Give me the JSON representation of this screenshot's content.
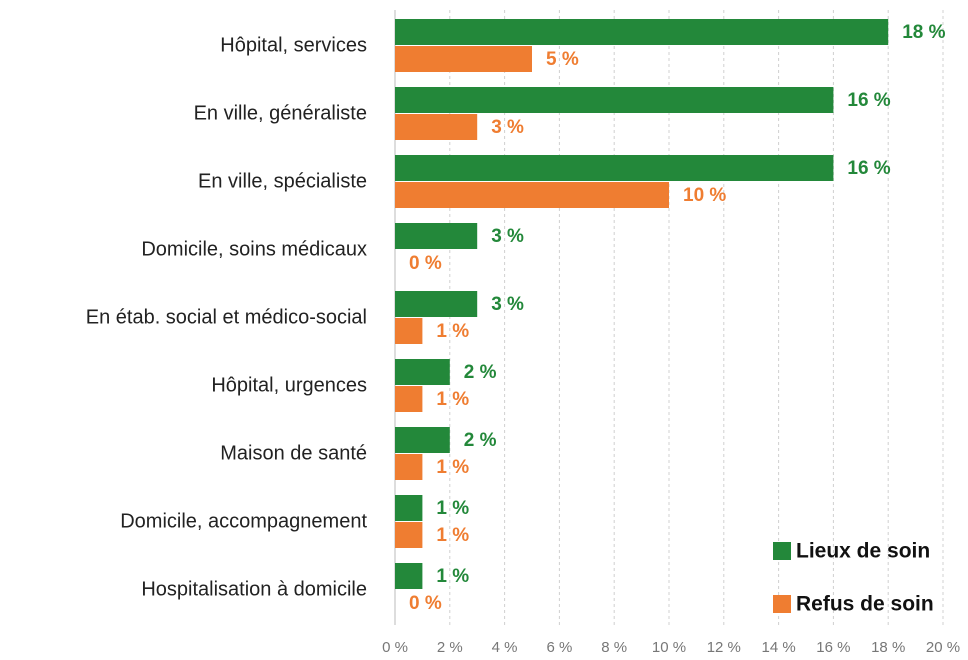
{
  "chart_data": {
    "type": "hbar",
    "categories": [
      "Hôpital, services",
      "En ville, généraliste",
      "En ville, spécialiste",
      "Domicile, soins médicaux",
      "En étab. social et médico-social",
      "Hôpital, urgences",
      "Maison de santé",
      "Domicile, accompagnement",
      "Hospitalisation à domicile"
    ],
    "series": [
      {
        "name": "Lieux de soin",
        "color": "#23883a",
        "values": [
          18,
          16,
          16,
          3,
          3,
          2,
          2,
          1,
          1
        ],
        "value_labels": [
          "18 %",
          "16 %",
          "16 %",
          "3 %",
          "3 %",
          "2 %",
          "2 %",
          "1 %",
          "1 %"
        ]
      },
      {
        "name": "Refus de soin",
        "color": "#ef7d31",
        "values": [
          5,
          3,
          10,
          0,
          1,
          1,
          1,
          1,
          0
        ],
        "value_labels": [
          "5 %",
          "3 %",
          "10 %",
          "0 %",
          "1 %",
          "1 %",
          "1 %",
          "1 %",
          "0 %"
        ]
      }
    ],
    "xlim": [
      0,
      20
    ],
    "xticks": [
      {
        "value": 0,
        "label": "0 %"
      },
      {
        "value": 2,
        "label": "2 %"
      },
      {
        "value": 4,
        "label": "4 %"
      },
      {
        "value": 6,
        "label": "6 %"
      },
      {
        "value": 8,
        "label": "8 %"
      },
      {
        "value": 10,
        "label": "10 %"
      },
      {
        "value": 12,
        "label": "12 %"
      },
      {
        "value": 14,
        "label": "14 %"
      },
      {
        "value": 16,
        "label": "16 %"
      },
      {
        "value": 18,
        "label": "18 %"
      },
      {
        "value": 20,
        "label": "20 %"
      }
    ],
    "grid": true,
    "legend": "lower right"
  }
}
